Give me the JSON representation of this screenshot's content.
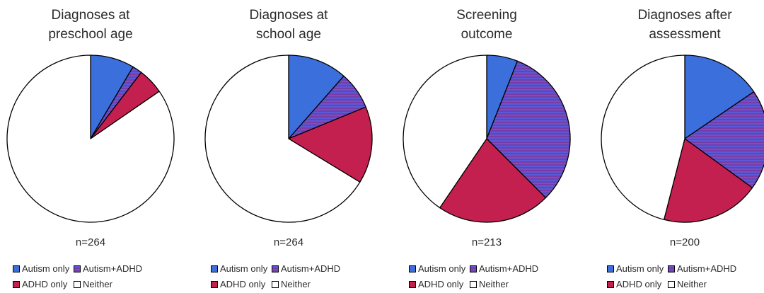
{
  "chart_data": [
    {
      "type": "pie",
      "title": [
        "Diagnoses at",
        "preschool age"
      ],
      "n_label": "n=264",
      "slices": [
        {
          "name": "Autism only",
          "value": 8.5
        },
        {
          "name": "Autism+ADHD",
          "value": 1.9
        },
        {
          "name": "ADHD only",
          "value": 5.0
        },
        {
          "name": "Neither",
          "value": 84.6
        }
      ]
    },
    {
      "type": "pie",
      "title": [
        "Diagnoses at",
        "school age"
      ],
      "n_label": "n=264",
      "slices": [
        {
          "name": "Autism only",
          "value": 11.5
        },
        {
          "name": "Autism+ADHD",
          "value": 7.3
        },
        {
          "name": "ADHD only",
          "value": 14.9
        },
        {
          "name": "Neither",
          "value": 66.3
        }
      ]
    },
    {
      "type": "pie",
      "title": [
        "Screening",
        "outcome"
      ],
      "n_label": "n=213",
      "slices": [
        {
          "name": "Autism only",
          "value": 6.0
        },
        {
          "name": "Autism+ADHD",
          "value": 31.5
        },
        {
          "name": "ADHD only",
          "value": 22.0
        },
        {
          "name": "Neither",
          "value": 40.5
        }
      ]
    },
    {
      "type": "pie",
      "title": [
        "Diagnoses after",
        "assessment"
      ],
      "n_label": "n=200",
      "slices": [
        {
          "name": "Autism only",
          "value": 15.5
        },
        {
          "name": "Autism+ADHD",
          "value": 19.5
        },
        {
          "name": "ADHD only",
          "value": 19.0
        },
        {
          "name": "Neither",
          "value": 46.0
        }
      ]
    }
  ],
  "legend": [
    {
      "key": "autism",
      "label": "Autism only"
    },
    {
      "key": "both",
      "label": "Autism+ADHD"
    },
    {
      "key": "adhd",
      "label": "ADHD only"
    },
    {
      "key": "neither",
      "label": "Neither"
    }
  ],
  "colors": {
    "autism": "#3b6fdc",
    "both_stripe_a": "#7b3ba6",
    "both_stripe_b": "#5a5ad6",
    "adhd": "#c4204f",
    "neither": "#ffffff",
    "outline": "#000000"
  }
}
